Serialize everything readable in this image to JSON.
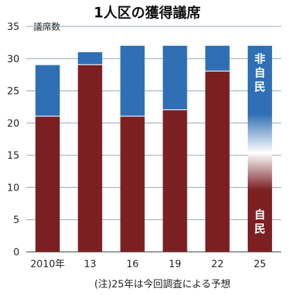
{
  "chart_data": {
    "type": "bar",
    "title": "1人区の獲得議席",
    "ylabel": "議席数",
    "xlabel": "",
    "categories": [
      "2010年",
      "13",
      "16",
      "19",
      "22",
      "25"
    ],
    "ylim": [
      0,
      35
    ],
    "yticks": [
      0,
      5,
      10,
      15,
      20,
      25,
      30,
      35
    ],
    "series": [
      {
        "name": "自民",
        "values": [
          21,
          29,
          21,
          22,
          28,
          null
        ],
        "color": "#7b1f23"
      },
      {
        "name": "非自民",
        "values": [
          8,
          2,
          11,
          10,
          4,
          null
        ],
        "color": "#2f6fb5"
      }
    ],
    "forecast": {
      "category": "25",
      "total": 32,
      "top_label": "非自民",
      "bottom_label": "自民",
      "top_color": "#2f6fb5",
      "bottom_color": "#7b1f23"
    },
    "grid": true,
    "grid_color": "#8aa0b4",
    "legend": "none",
    "note": "(注)25年は今回調査による予想"
  }
}
